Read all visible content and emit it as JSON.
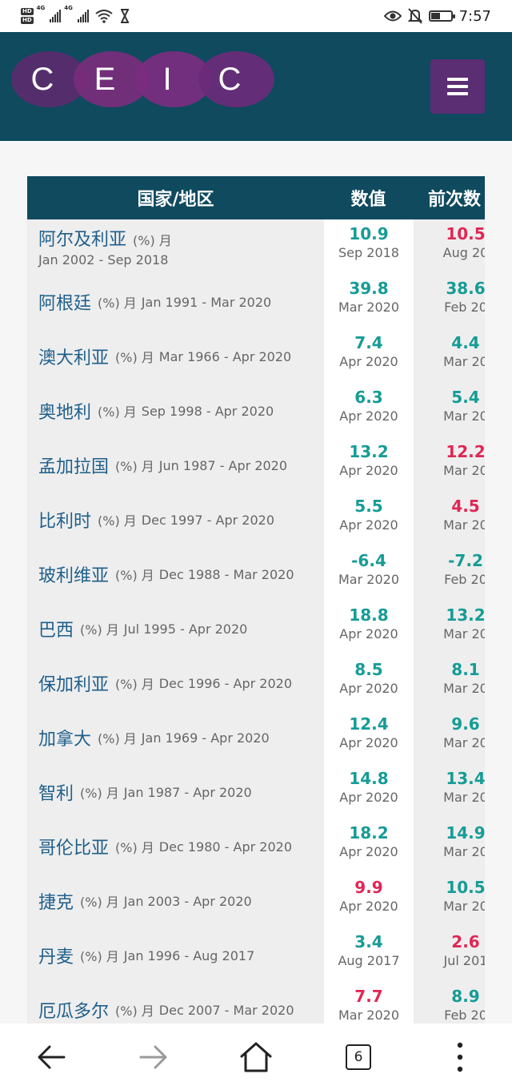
{
  "status_bar": {
    "hd1": "HD",
    "hd2": "HD",
    "sig1": "4G",
    "sig2": "4G",
    "time": "7:57",
    "battery_level": 0.45
  },
  "header": {
    "logo_letters": [
      "C",
      "E",
      "I",
      "C"
    ],
    "colors": {
      "header_bg": "#0f4a5f",
      "menu_bg": "#5b2d72",
      "teal": "#169c96",
      "red": "#e02755",
      "link": "#1f5f8b"
    }
  },
  "table": {
    "headers": {
      "country": "国家/地区",
      "value": "数值",
      "previous": "前次数"
    },
    "rows": [
      {
        "country": "阿尔及利亚",
        "unit": "(%) 月",
        "range": "Jan 2002 - Sep 2018",
        "value": "10.9",
        "value_date": "Sep 2018",
        "value_color": "teal",
        "prev": "10.5",
        "prev_date": "Aug 20",
        "prev_color": "red"
      },
      {
        "country": "阿根廷",
        "unit": "(%) 月",
        "range": "Jan 1991 - Mar 2020",
        "value": "39.8",
        "value_date": "Mar 2020",
        "value_color": "teal",
        "prev": "38.6",
        "prev_date": "Feb 20",
        "prev_color": "teal"
      },
      {
        "country": "澳大利亚",
        "unit": "(%) 月",
        "range": "Mar 1966 - Apr 2020",
        "value": "7.4",
        "value_date": "Apr 2020",
        "value_color": "teal",
        "prev": "4.4",
        "prev_date": "Mar 20",
        "prev_color": "teal"
      },
      {
        "country": "奥地利",
        "unit": "(%) 月",
        "range": "Sep 1998 - Apr 2020",
        "value": "6.3",
        "value_date": "Apr 2020",
        "value_color": "teal",
        "prev": "5.4",
        "prev_date": "Mar 20",
        "prev_color": "teal"
      },
      {
        "country": "孟加拉国",
        "unit": "(%) 月",
        "range": "Jun 1987 - Apr 2020",
        "value": "13.2",
        "value_date": "Apr 2020",
        "value_color": "teal",
        "prev": "12.2",
        "prev_date": "Mar 20",
        "prev_color": "red"
      },
      {
        "country": "比利时",
        "unit": "(%) 月",
        "range": "Dec 1997 - Apr 2020",
        "value": "5.5",
        "value_date": "Apr 2020",
        "value_color": "teal",
        "prev": "4.5",
        "prev_date": "Mar 20",
        "prev_color": "red"
      },
      {
        "country": "玻利维亚",
        "unit": "(%) 月",
        "range": "Dec 1988 - Mar 2020",
        "value": "-6.4",
        "value_date": "Mar 2020",
        "value_color": "teal",
        "prev": "-7.2",
        "prev_date": "Feb 20",
        "prev_color": "teal"
      },
      {
        "country": "巴西",
        "unit": "(%) 月",
        "range": "Jul 1995 - Apr 2020",
        "value": "18.8",
        "value_date": "Apr 2020",
        "value_color": "teal",
        "prev": "13.2",
        "prev_date": "Mar 20",
        "prev_color": "teal"
      },
      {
        "country": "保加利亚",
        "unit": "(%) 月",
        "range": "Dec 1996 - Apr 2020",
        "value": "8.5",
        "value_date": "Apr 2020",
        "value_color": "teal",
        "prev": "8.1",
        "prev_date": "Mar 20",
        "prev_color": "teal"
      },
      {
        "country": "加拿大",
        "unit": "(%) 月",
        "range": "Jan 1969 - Apr 2020",
        "value": "12.4",
        "value_date": "Apr 2020",
        "value_color": "teal",
        "prev": "9.6",
        "prev_date": "Mar 20",
        "prev_color": "teal"
      },
      {
        "country": "智利",
        "unit": "(%) 月",
        "range": "Jan 1987 - Apr 2020",
        "value": "14.8",
        "value_date": "Apr 2020",
        "value_color": "teal",
        "prev": "13.4",
        "prev_date": "Mar 20",
        "prev_color": "teal"
      },
      {
        "country": "哥伦比亚",
        "unit": "(%) 月",
        "range": "Dec 1980 - Apr 2020",
        "value": "18.2",
        "value_date": "Apr 2020",
        "value_color": "teal",
        "prev": "14.9",
        "prev_date": "Mar 20",
        "prev_color": "teal"
      },
      {
        "country": "捷克",
        "unit": "(%) 月",
        "range": "Jan 2003 - Apr 2020",
        "value": "9.9",
        "value_date": "Apr 2020",
        "value_color": "red",
        "prev": "10.5",
        "prev_date": "Mar 20",
        "prev_color": "teal"
      },
      {
        "country": "丹麦",
        "unit": "(%) 月",
        "range": "Jan 1996 - Aug 2017",
        "value": "3.4",
        "value_date": "Aug 2017",
        "value_color": "teal",
        "prev": "2.6",
        "prev_date": "Jul 201",
        "prev_color": "red"
      },
      {
        "country": "厄瓜多尔",
        "unit": "(%) 月",
        "range": "Dec 2007 - Mar 2020",
        "value": "7.7",
        "value_date": "Mar 2020",
        "value_color": "red",
        "prev": "8.9",
        "prev_date": "Feb 20",
        "prev_color": "teal"
      }
    ]
  },
  "nav": {
    "tab_count": "6",
    "icons": [
      "back-arrow-icon",
      "forward-arrow-icon",
      "home-icon",
      "tabs-icon",
      "more-vertical-icon"
    ]
  }
}
